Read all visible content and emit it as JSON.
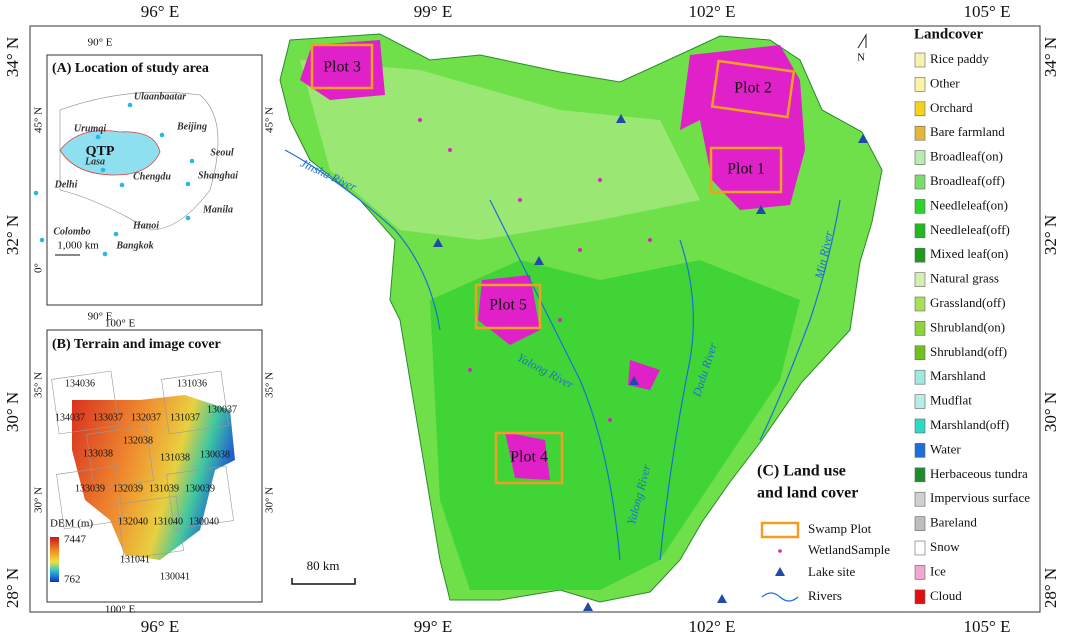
{
  "axes": {
    "top_lon": [
      "96° E",
      "99° E",
      "102° E",
      "105° E"
    ],
    "bottom_lon": [
      "96° E",
      "99° E",
      "102° E",
      "105° E"
    ],
    "left_lat": [
      "34° N",
      "32° N",
      "30° N",
      "28° N"
    ],
    "right_lat": [
      "34° N",
      "32° N",
      "30° N",
      "28° N"
    ]
  },
  "inset_a": {
    "title": "(A) Location of study area",
    "lon_top": "90° E",
    "lon_bottom": "90° E",
    "lat_left": [
      "45° N",
      "0°"
    ],
    "lat_right": "45° N",
    "region": "QTP",
    "cities": [
      "Ulaanbaatar",
      "Urumqi",
      "Beijing",
      "Seoul",
      "Lasa",
      "Chengdu",
      "Shanghai",
      "Delhi",
      "Hanoi",
      "Manila",
      "Bangkok",
      "Colombo"
    ],
    "scale": "1,000 km"
  },
  "inset_b": {
    "title": "(B) Terrain and image cover",
    "lon_top": "100° E",
    "lon_bottom": "100° E",
    "lat_left": [
      "35° N",
      "30° N"
    ],
    "lat_right": [
      "35° N",
      "30° N"
    ],
    "tiles": [
      "134036",
      "131036",
      "134037",
      "133037",
      "132037",
      "131037",
      "130037",
      "132038",
      "133038",
      "131038",
      "130038",
      "133039",
      "132039",
      "131039",
      "130039",
      "132040",
      "131040",
      "130040",
      "130041",
      "131041"
    ],
    "legend_title": "DEM (m)",
    "legend_max": "7447",
    "legend_min": "762"
  },
  "main_map": {
    "plots": [
      "Plot 1",
      "Plot 2",
      "Plot 3",
      "Plot 4",
      "Plot 5"
    ],
    "rivers": [
      "Jinsha River",
      "Yalong River",
      "Dadu River",
      "Min River",
      "Yalong River"
    ],
    "scale": "80 km",
    "north": "N"
  },
  "legend_c": {
    "title": [
      "(C) Land use",
      "and land cover"
    ],
    "items": [
      "Swamp Plot",
      "WetlandSample",
      "Lake site",
      "Rivers"
    ]
  },
  "landcover": {
    "title": "Landcover",
    "items": [
      {
        "label": "Rice paddy",
        "color": "#f4f4b0"
      },
      {
        "label": "Other",
        "color": "#fbf4a8"
      },
      {
        "label": "Orchard",
        "color": "#f5d21e"
      },
      {
        "label": "Bare farmland",
        "color": "#e3b83a"
      },
      {
        "label": "Broadleaf(on)",
        "color": "#b8ecb0"
      },
      {
        "label": "Broadleaf(off)",
        "color": "#7adc6e"
      },
      {
        "label": "Needleleaf(on)",
        "color": "#2ed12e"
      },
      {
        "label": "Needleleaf(off)",
        "color": "#22b822"
      },
      {
        "label": "Mixed leaf(on)",
        "color": "#1e9a1e"
      },
      {
        "label": "Natural grass",
        "color": "#d2f0b0"
      },
      {
        "label": "Grassland(off)",
        "color": "#a8e05a"
      },
      {
        "label": "Shrubland(on)",
        "color": "#8cd43c"
      },
      {
        "label": "Shrubland(off)",
        "color": "#70c020"
      },
      {
        "label": "Marshland",
        "color": "#a0e8e0"
      },
      {
        "label": "Mudflat",
        "color": "#b8eee8"
      },
      {
        "label": "Marshland(off)",
        "color": "#30d8c8"
      },
      {
        "label": "Water",
        "color": "#1e6ed8"
      },
      {
        "label": "Herbaceous tundra",
        "color": "#1e8c2e"
      },
      {
        "label": "Impervious surface",
        "color": "#d0d0d0"
      },
      {
        "label": "Bareland",
        "color": "#bdbdbd"
      },
      {
        "label": "Snow",
        "color": "#ffffff"
      },
      {
        "label": "Ice",
        "color": "#f0a8d0"
      },
      {
        "label": "Cloud",
        "color": "#e01010"
      }
    ]
  }
}
